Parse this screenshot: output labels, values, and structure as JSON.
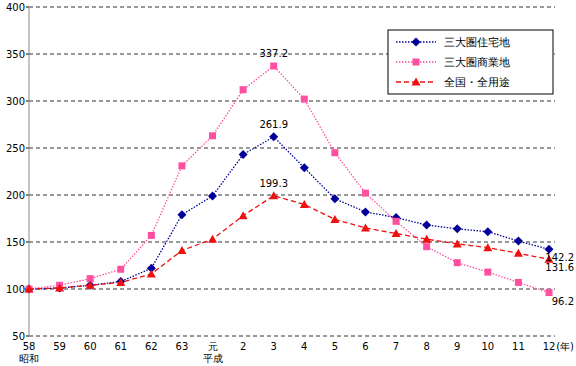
{
  "chart_data": {
    "type": "line",
    "categories": [
      "58\n昭和",
      "59",
      "60",
      "61",
      "62",
      "63",
      "元\n平成",
      "2",
      "3",
      "4",
      "5",
      "6",
      "7",
      "8",
      "9",
      "10",
      "11",
      "12"
    ],
    "xlabel": "(年)",
    "ylim": [
      50,
      400
    ],
    "yticks": [
      50,
      100,
      150,
      200,
      250,
      300,
      350,
      400
    ],
    "grid": true,
    "legend": "upper right",
    "data_labels": true,
    "series": [
      {
        "name": "三大圏住宅地",
        "color": "#000099",
        "marker": "diamond",
        "line_style": "dotted",
        "values": [
          100,
          101,
          104,
          108,
          122,
          179,
          199,
          243,
          261.9,
          229,
          196,
          182,
          176,
          168,
          164,
          161,
          151,
          142.2
        ],
        "value_labels": [
          null,
          null,
          null,
          null,
          null,
          null,
          null,
          null,
          "261.9",
          null,
          null,
          null,
          null,
          null,
          null,
          null,
          null,
          "142.2"
        ]
      },
      {
        "name": "三大圏商業地",
        "color": "#ff4fa0",
        "marker": "square",
        "line_style": "dotted",
        "values": [
          100,
          104,
          111,
          121,
          157,
          231,
          263,
          312,
          337.2,
          302,
          245,
          202,
          172,
          145,
          128,
          118,
          107,
          96.2
        ],
        "value_labels": [
          null,
          null,
          null,
          null,
          null,
          null,
          null,
          null,
          "337.2",
          null,
          null,
          null,
          null,
          null,
          null,
          null,
          null,
          "96.2"
        ]
      },
      {
        "name": "全国・全用途",
        "color": "#ee1111",
        "marker": "triangle",
        "line_style": "dashed",
        "values": [
          100,
          101,
          104,
          107,
          116,
          141,
          153,
          178,
          199.3,
          190,
          174,
          165,
          159,
          153,
          148,
          144,
          138,
          131.6
        ],
        "value_labels": [
          null,
          null,
          null,
          null,
          null,
          null,
          null,
          null,
          "199.3",
          null,
          null,
          null,
          null,
          null,
          null,
          null,
          null,
          "131.6"
        ]
      }
    ]
  }
}
